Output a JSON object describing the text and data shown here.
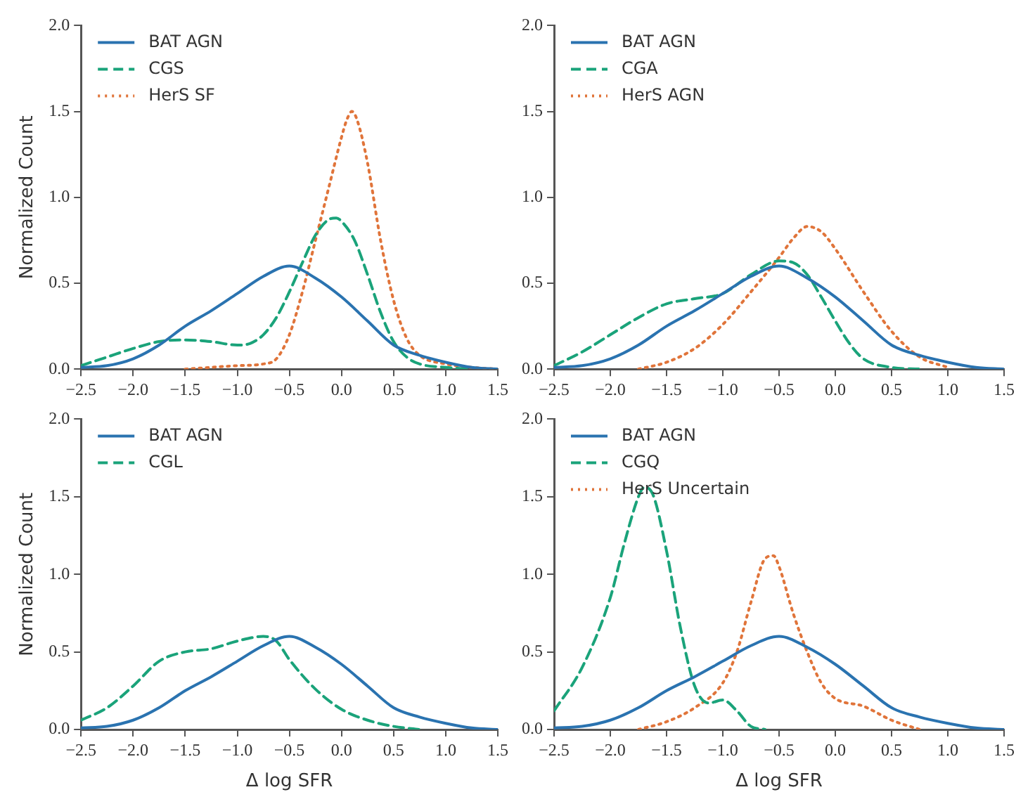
{
  "chart_data": [
    {
      "type": "line",
      "ylabel": "Normalized Count",
      "xlim": [
        -2.5,
        1.5
      ],
      "xticks": [
        {
          "value": -2.5,
          "label": "−2.5"
        },
        {
          "value": -2,
          "label": "−2.0"
        },
        {
          "value": -1.5,
          "label": "−1.5"
        },
        {
          "value": -1,
          "label": "−1.0"
        },
        {
          "value": -0.5,
          "label": "−0.5"
        },
        {
          "value": 0,
          "label": "0.0"
        },
        {
          "value": 0.5,
          "label": "0.5"
        },
        {
          "value": 1,
          "label": "1.0"
        },
        {
          "value": 1.5,
          "label": "1.5"
        }
      ],
      "ylim": [
        0,
        2
      ],
      "yticks": [
        {
          "value": 0,
          "label": "0.0"
        },
        {
          "value": 0.5,
          "label": "0.5"
        },
        {
          "value": 1,
          "label": "1.0"
        },
        {
          "value": 1.5,
          "label": "1.5"
        },
        {
          "value": 2,
          "label": "2.0"
        }
      ],
      "legend": "top left",
      "series": [
        {
          "name": "BAT AGN",
          "color": "#2a73b0",
          "line_style": "solid",
          "x": [
            -2.5,
            -2.25,
            -2,
            -1.75,
            -1.5,
            -1.25,
            -1,
            -0.75,
            -0.5,
            -0.25,
            0,
            0.25,
            0.5,
            0.75,
            1,
            1.25,
            1.5
          ],
          "values": [
            0.01,
            0.02,
            0.06,
            0.14,
            0.25,
            0.34,
            0.44,
            0.54,
            0.6,
            0.53,
            0.42,
            0.28,
            0.14,
            0.08,
            0.04,
            0.01,
            0
          ]
        },
        {
          "name": "CGS",
          "color": "#1aa37a",
          "line_style": "dashed",
          "x": [
            -2.5,
            -2.25,
            -2,
            -1.75,
            -1.5,
            -1.25,
            -1,
            -0.875,
            -0.75,
            -0.625,
            -0.5,
            -0.375,
            -0.25,
            -0.125,
            -0.05,
            0,
            0.125,
            0.25,
            0.375,
            0.5,
            0.625,
            0.75,
            1,
            1.25
          ],
          "values": [
            0.02,
            0.07,
            0.12,
            0.16,
            0.17,
            0.16,
            0.14,
            0.15,
            0.2,
            0.3,
            0.45,
            0.62,
            0.78,
            0.87,
            0.88,
            0.86,
            0.75,
            0.55,
            0.33,
            0.16,
            0.07,
            0.03,
            0.01,
            0
          ]
        },
        {
          "name": "HerS SF",
          "color": "#e0743a",
          "line_style": "dotted",
          "x": [
            -1.5,
            -1,
            -0.75,
            -0.625,
            -0.5,
            -0.375,
            -0.25,
            -0.125,
            0,
            0.05,
            0.1,
            0.15,
            0.25,
            0.375,
            0.5,
            0.625,
            0.75,
            1,
            1.25,
            1.5
          ],
          "values": [
            0,
            0.02,
            0.03,
            0.06,
            0.2,
            0.45,
            0.75,
            1.05,
            1.35,
            1.45,
            1.5,
            1.45,
            1.2,
            0.75,
            0.4,
            0.18,
            0.08,
            0.03,
            0.01,
            0
          ]
        }
      ]
    },
    {
      "type": "line",
      "xlim": [
        -2.5,
        1.5
      ],
      "xticks": [
        {
          "value": -2.5,
          "label": "−2.5"
        },
        {
          "value": -2,
          "label": "−2.0"
        },
        {
          "value": -1.5,
          "label": "−1.5"
        },
        {
          "value": -1,
          "label": "−1.0"
        },
        {
          "value": -0.5,
          "label": "−0.5"
        },
        {
          "value": 0,
          "label": "0.0"
        },
        {
          "value": 0.5,
          "label": "0.5"
        },
        {
          "value": 1,
          "label": "1.0"
        },
        {
          "value": 1.5,
          "label": "1.5"
        }
      ],
      "ylim": [
        0,
        2
      ],
      "yticks": [
        {
          "value": 0,
          "label": "0.0"
        },
        {
          "value": 0.5,
          "label": "0.5"
        },
        {
          "value": 1,
          "label": "1.0"
        },
        {
          "value": 1.5,
          "label": "1.5"
        },
        {
          "value": 2,
          "label": "2.0"
        }
      ],
      "legend": "top left",
      "series": [
        {
          "name": "BAT AGN",
          "color": "#2a73b0",
          "line_style": "solid",
          "x": [
            -2.5,
            -2.25,
            -2,
            -1.75,
            -1.5,
            -1.25,
            -1,
            -0.75,
            -0.5,
            -0.25,
            0,
            0.25,
            0.5,
            0.75,
            1,
            1.25,
            1.5
          ],
          "values": [
            0.01,
            0.02,
            0.06,
            0.14,
            0.25,
            0.34,
            0.44,
            0.54,
            0.6,
            0.53,
            0.42,
            0.28,
            0.14,
            0.08,
            0.04,
            0.01,
            0
          ]
        },
        {
          "name": "CGA",
          "color": "#1aa37a",
          "line_style": "dashed",
          "x": [
            -2.5,
            -2.25,
            -2,
            -1.75,
            -1.5,
            -1.25,
            -1,
            -0.75,
            -0.5,
            -0.375,
            -0.25,
            -0.125,
            0,
            0.125,
            0.25,
            0.5,
            0.75
          ],
          "values": [
            0.02,
            0.1,
            0.2,
            0.3,
            0.38,
            0.41,
            0.44,
            0.55,
            0.63,
            0.62,
            0.55,
            0.42,
            0.28,
            0.15,
            0.06,
            0.01,
            0
          ]
        },
        {
          "name": "HerS AGN",
          "color": "#e0743a",
          "line_style": "dotted",
          "x": [
            -1.75,
            -1.5,
            -1.25,
            -1,
            -0.75,
            -0.5,
            -0.375,
            -0.25,
            -0.125,
            0,
            0.25,
            0.5,
            0.75,
            1
          ],
          "values": [
            0,
            0.04,
            0.12,
            0.26,
            0.45,
            0.65,
            0.76,
            0.83,
            0.8,
            0.7,
            0.45,
            0.22,
            0.07,
            0.01
          ]
        }
      ]
    },
    {
      "type": "line",
      "ylabel": "Normalized Count",
      "xlabel": "Δ log SFR",
      "xlim": [
        -2.5,
        1.5
      ],
      "xticks": [
        {
          "value": -2.5,
          "label": "−2.5"
        },
        {
          "value": -2,
          "label": "−2.0"
        },
        {
          "value": -1.5,
          "label": "−1.5"
        },
        {
          "value": -1,
          "label": "−1.0"
        },
        {
          "value": -0.5,
          "label": "−0.5"
        },
        {
          "value": 0,
          "label": "0.0"
        },
        {
          "value": 0.5,
          "label": "0.5"
        },
        {
          "value": 1,
          "label": "1.0"
        },
        {
          "value": 1.5,
          "label": "1.5"
        }
      ],
      "ylim": [
        0,
        2
      ],
      "yticks": [
        {
          "value": 0,
          "label": "0.0"
        },
        {
          "value": 0.5,
          "label": "0.5"
        },
        {
          "value": 1,
          "label": "1.0"
        },
        {
          "value": 1.5,
          "label": "1.5"
        },
        {
          "value": 2,
          "label": "2.0"
        }
      ],
      "legend": "top left",
      "series": [
        {
          "name": "BAT AGN",
          "color": "#2a73b0",
          "line_style": "solid",
          "x": [
            -2.5,
            -2.25,
            -2,
            -1.75,
            -1.5,
            -1.25,
            -1,
            -0.75,
            -0.5,
            -0.25,
            0,
            0.25,
            0.5,
            0.75,
            1,
            1.25,
            1.5
          ],
          "values": [
            0.01,
            0.02,
            0.06,
            0.14,
            0.25,
            0.34,
            0.44,
            0.54,
            0.6,
            0.53,
            0.42,
            0.28,
            0.14,
            0.08,
            0.04,
            0.01,
            0
          ]
        },
        {
          "name": "CGL",
          "color": "#1aa37a",
          "line_style": "dashed",
          "x": [
            -2.5,
            -2.25,
            -2,
            -1.75,
            -1.5,
            -1.25,
            -1,
            -0.75,
            -0.625,
            -0.5,
            -0.25,
            0,
            0.25,
            0.5,
            0.75
          ],
          "values": [
            0.06,
            0.14,
            0.28,
            0.44,
            0.5,
            0.52,
            0.57,
            0.6,
            0.57,
            0.45,
            0.26,
            0.13,
            0.06,
            0.02,
            0
          ]
        }
      ]
    },
    {
      "type": "line",
      "xlabel": "Δ log SFR",
      "xlim": [
        -2.5,
        1.5
      ],
      "xticks": [
        {
          "value": -2.5,
          "label": "−2.5"
        },
        {
          "value": -2,
          "label": "−2.0"
        },
        {
          "value": -1.5,
          "label": "−1.5"
        },
        {
          "value": -1,
          "label": "−1.0"
        },
        {
          "value": -0.5,
          "label": "−0.5"
        },
        {
          "value": 0,
          "label": "0.0"
        },
        {
          "value": 0.5,
          "label": "0.5"
        },
        {
          "value": 1,
          "label": "1.0"
        },
        {
          "value": 1.5,
          "label": "1.5"
        }
      ],
      "ylim": [
        0,
        2
      ],
      "yticks": [
        {
          "value": 0,
          "label": "0.0"
        },
        {
          "value": 0.5,
          "label": "0.5"
        },
        {
          "value": 1,
          "label": "1.0"
        },
        {
          "value": 1.5,
          "label": "1.5"
        },
        {
          "value": 2,
          "label": "2.0"
        }
      ],
      "legend": "top left",
      "series": [
        {
          "name": "BAT AGN",
          "color": "#2a73b0",
          "line_style": "solid",
          "x": [
            -2.5,
            -2.25,
            -2,
            -1.75,
            -1.5,
            -1.25,
            -1,
            -0.75,
            -0.5,
            -0.25,
            0,
            0.25,
            0.5,
            0.75,
            1,
            1.25,
            1.5
          ],
          "values": [
            0.01,
            0.02,
            0.06,
            0.14,
            0.25,
            0.34,
            0.44,
            0.54,
            0.6,
            0.53,
            0.42,
            0.28,
            0.14,
            0.08,
            0.04,
            0.01,
            0
          ]
        },
        {
          "name": "CGQ",
          "color": "#1aa37a",
          "line_style": "dashed",
          "x": [
            -2.5,
            -2.25,
            -2,
            -1.875,
            -1.75,
            -1.7,
            -1.625,
            -1.5,
            -1.375,
            -1.25,
            -1.125,
            -1,
            -0.875,
            -0.75,
            -0.625
          ],
          "values": [
            0.12,
            0.4,
            0.85,
            1.2,
            1.5,
            1.56,
            1.52,
            1.15,
            0.65,
            0.28,
            0.17,
            0.19,
            0.12,
            0.02,
            0
          ]
        },
        {
          "name": "HerS Uncertain",
          "color": "#e0743a",
          "line_style": "dotted",
          "x": [
            -1.75,
            -1.5,
            -1.25,
            -1,
            -0.875,
            -0.75,
            -0.625,
            -0.55,
            -0.5,
            -0.375,
            -0.25,
            -0.125,
            0,
            0.25,
            0.5,
            0.75
          ],
          "values": [
            0,
            0.05,
            0.14,
            0.3,
            0.5,
            0.82,
            1.1,
            1.12,
            1.05,
            0.75,
            0.5,
            0.3,
            0.2,
            0.15,
            0.06,
            0
          ]
        }
      ]
    }
  ]
}
